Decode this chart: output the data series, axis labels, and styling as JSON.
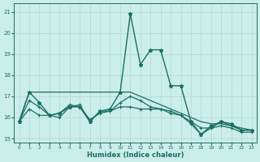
{
  "xlabel": "Humidex (Indice chaleur)",
  "bg_color": "#cceee8",
  "grid_color": "#b0d8d0",
  "line_color": "#1a6e62",
  "xlim": [
    -0.5,
    23.5
  ],
  "ylim": [
    14.8,
    21.4
  ],
  "yticks": [
    15,
    16,
    17,
    18,
    19,
    20,
    21
  ],
  "xticks": [
    0,
    1,
    2,
    3,
    4,
    5,
    6,
    7,
    8,
    9,
    10,
    11,
    12,
    13,
    14,
    15,
    16,
    17,
    18,
    19,
    20,
    21,
    22,
    23
  ],
  "series": [
    {
      "x": [
        0,
        1,
        2,
        3,
        4,
        5,
        6,
        7,
        8,
        9,
        10,
        11,
        12,
        13,
        14,
        15,
        16,
        17,
        18,
        19,
        20,
        21,
        22,
        23
      ],
      "y": [
        15.8,
        17.2,
        16.7,
        16.1,
        16.2,
        16.5,
        16.5,
        15.8,
        16.3,
        16.4,
        17.2,
        20.9,
        18.5,
        19.2,
        19.2,
        17.5,
        17.5,
        15.8,
        15.2,
        15.6,
        15.8,
        15.7,
        15.4,
        15.4
      ],
      "marker": "*",
      "markersize": 3.5,
      "linewidth": 1.0
    },
    {
      "x": [
        0,
        1,
        2,
        3,
        4,
        5,
        6,
        7,
        8,
        9,
        10,
        11,
        12,
        13,
        14,
        15,
        16,
        17,
        18,
        19,
        20,
        21,
        22,
        23
      ],
      "y": [
        15.8,
        17.2,
        17.2,
        17.2,
        17.2,
        17.2,
        17.2,
        17.2,
        17.2,
        17.2,
        17.2,
        17.2,
        17.0,
        16.8,
        16.6,
        16.4,
        16.2,
        16.0,
        15.8,
        15.7,
        15.7,
        15.6,
        15.5,
        15.4
      ],
      "marker": null,
      "markersize": 0,
      "linewidth": 0.9
    },
    {
      "x": [
        0,
        1,
        2,
        3,
        4,
        5,
        6,
        7,
        8,
        9,
        10,
        11,
        12,
        13,
        14,
        15,
        16,
        17,
        18,
        19,
        20,
        21,
        22,
        23
      ],
      "y": [
        15.8,
        16.8,
        16.5,
        16.1,
        16.2,
        16.6,
        16.5,
        15.9,
        16.2,
        16.3,
        16.5,
        16.5,
        16.4,
        16.4,
        16.4,
        16.3,
        16.1,
        15.8,
        15.5,
        15.5,
        15.6,
        15.5,
        15.3,
        15.3
      ],
      "marker": "+",
      "markersize": 3.0,
      "linewidth": 0.9
    },
    {
      "x": [
        0,
        1,
        2,
        3,
        4,
        5,
        6,
        7,
        8,
        9,
        10,
        11,
        12,
        13,
        14,
        15,
        16,
        17,
        18,
        19,
        20,
        21,
        22,
        23
      ],
      "y": [
        15.8,
        16.4,
        16.1,
        16.1,
        16.0,
        16.5,
        16.6,
        15.8,
        16.3,
        16.3,
        16.7,
        17.0,
        16.8,
        16.5,
        16.4,
        16.2,
        16.1,
        15.7,
        15.2,
        15.5,
        15.8,
        15.6,
        15.4,
        15.4
      ],
      "marker": "+",
      "markersize": 3.0,
      "linewidth": 0.9
    }
  ]
}
